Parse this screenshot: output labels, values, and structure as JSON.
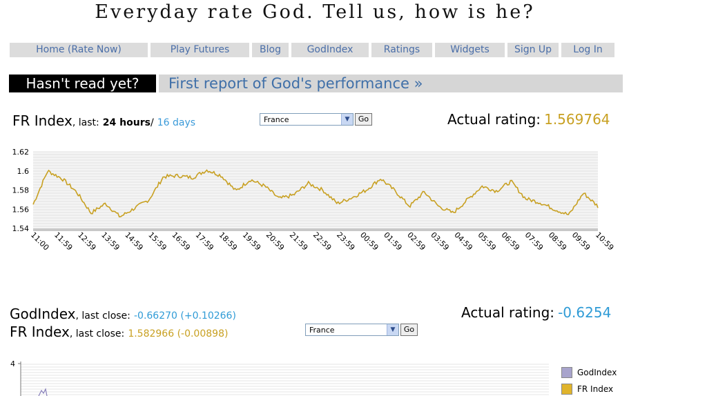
{
  "tagline": "Everyday rate God. Tell us, how is he?",
  "nav": [
    {
      "label": "Home (Rate Now)"
    },
    {
      "label": "Play Futures"
    },
    {
      "label": "Blog"
    },
    {
      "label": "GodIndex"
    },
    {
      "label": "Ratings"
    },
    {
      "label": "Widgets"
    },
    {
      "label": "Sign Up"
    },
    {
      "label": "Log In"
    }
  ],
  "banner": {
    "left": "Hasn't read yet?",
    "right": "First report of God's performance »"
  },
  "section1": {
    "title": "FR Index",
    "last_label": ", last:",
    "period_active": "24 hours",
    "separator": "/",
    "period_link": "16 days",
    "select_value": "France",
    "go_label": "Go",
    "rating_label": "Actual rating:",
    "rating_value": "1.569764"
  },
  "section2": {
    "title1": "GodIndex",
    "last_close_label": ", last close:",
    "title1_value": "-0.66270 (+0.10266)",
    "title2": "FR Index",
    "title2_value": "1.582966 (-0.00898)",
    "select_value": "France",
    "go_label": "Go",
    "rating_label": "Actual rating:",
    "rating_value": "-0.6254",
    "legend": [
      "GodIndex",
      "FR Index"
    ],
    "y_tick_top": "4"
  },
  "colors": {
    "line": "#c8a021",
    "godindex_swatch": "#a8a4cc",
    "frindex_swatch": "#e0b42c"
  },
  "chart_data": {
    "type": "line",
    "title": "",
    "xlabel": "",
    "ylabel": "",
    "ylim": [
      1.54,
      1.62
    ],
    "y_ticks": [
      "1.62",
      "1.6",
      "1.58",
      "1.56",
      "1.54"
    ],
    "x_ticks": [
      "11:00",
      "11:59",
      "12:59",
      "13:59",
      "14:59",
      "15:59",
      "16:59",
      "17:59",
      "18:59",
      "19:59",
      "20:59",
      "21:59",
      "22:59",
      "23:59",
      "00:59",
      "01:59",
      "02:59",
      "03:59",
      "04:59",
      "05:59",
      "06:59",
      "07:59",
      "08:59",
      "09:59",
      "10:59"
    ],
    "series": [
      {
        "values": [
          1.565,
          1.6,
          1.592,
          1.578,
          1.556,
          1.566,
          1.552,
          1.561,
          1.57,
          1.594,
          1.595,
          1.593,
          1.601,
          1.595,
          1.579,
          1.591,
          1.584,
          1.571,
          1.575,
          1.587,
          1.58,
          1.566,
          1.572,
          1.58,
          1.592,
          1.579,
          1.563,
          1.578,
          1.563,
          1.556,
          1.57,
          1.584,
          1.579,
          1.589,
          1.571,
          1.567,
          1.56,
          1.554,
          1.577,
          1.563
        ]
      }
    ],
    "grid": true
  }
}
